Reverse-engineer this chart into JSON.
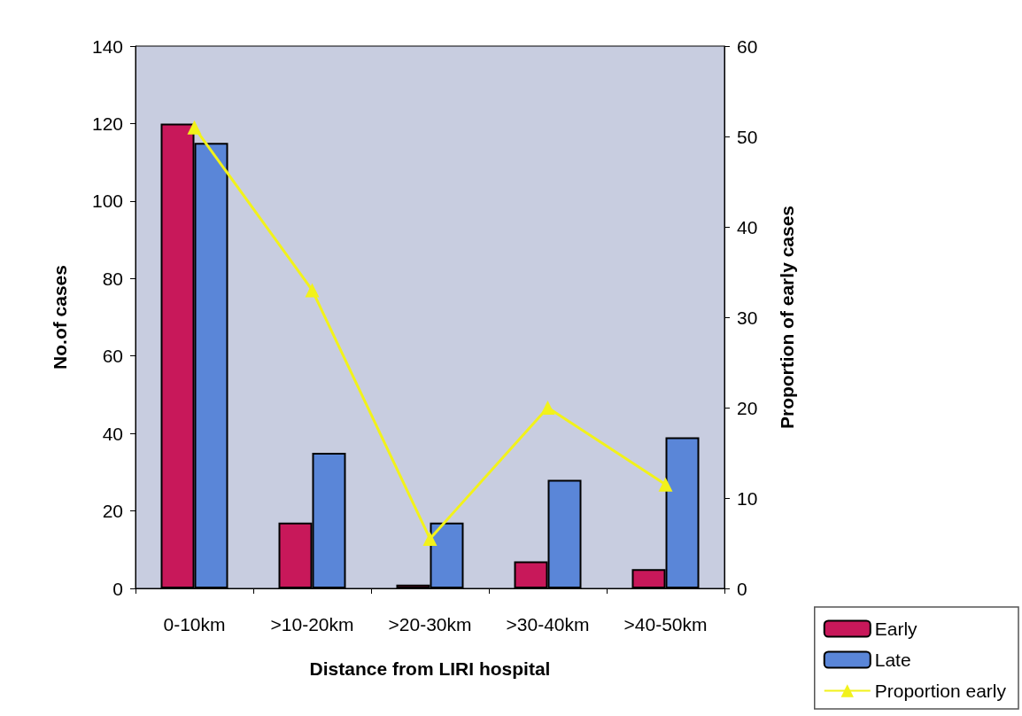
{
  "chart_data": {
    "type": "bar",
    "xlabel": "Distance from LIRI hospital",
    "ylabel": "No.of cases",
    "y2label": "Proportion of early cases",
    "categories": [
      "0-10km",
      ">10-20km",
      ">20-30km",
      ">30-40km",
      ">40-50km"
    ],
    "series": [
      {
        "name": "Early",
        "color": "#c8185a",
        "values": [
          120,
          17,
          1,
          7,
          5
        ]
      },
      {
        "name": "Late",
        "color": "#5a86d8",
        "values": [
          115,
          35,
          17,
          28,
          39
        ]
      },
      {
        "name": "Proportion early",
        "type": "line",
        "axis": "y2",
        "color": "#f2f21a",
        "marker": "triangle",
        "values": [
          51,
          33,
          5.5,
          20,
          11.5
        ]
      }
    ],
    "ylim": [
      0,
      140
    ],
    "yticks": [
      0,
      20,
      40,
      60,
      80,
      100,
      120,
      140
    ],
    "y2lim": [
      0,
      60
    ],
    "y2ticks": [
      0,
      10,
      20,
      30,
      40,
      50,
      60
    ],
    "grid": false,
    "legend": "bottom right"
  }
}
